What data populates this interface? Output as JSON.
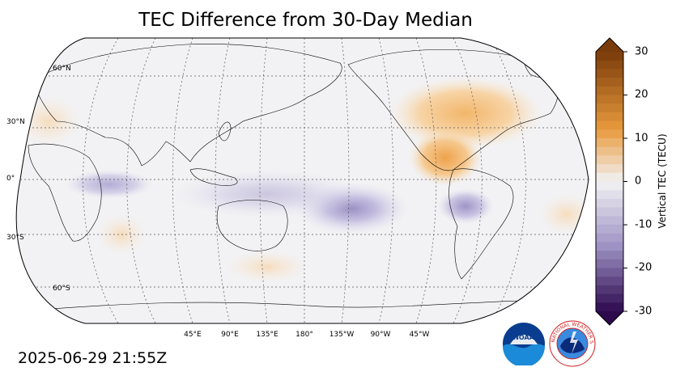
{
  "title": "TEC Difference from 30-Day Median",
  "timestamp": "2025-06-29 21:55Z",
  "latitude_labels": [
    "60°N",
    "30°N",
    "0°",
    "30°S",
    "60°S"
  ],
  "longitude_labels": [
    "45°E",
    "90°E",
    "135°E",
    "180°",
    "135°W",
    "90°W",
    "45°W"
  ],
  "colorbar": {
    "label": "Vertical TEC (TECU)",
    "ticks": [
      "30",
      "20",
      "10",
      "0",
      "-10",
      "-20",
      "-30"
    ],
    "min": -30,
    "max": 30,
    "colors": {
      "positive_max": "#7a3b0a",
      "positive_mid": "#e89a3c",
      "neutral": "#f2f2f4",
      "negative_mid": "#9e92c4",
      "negative_max": "#2d0a4e"
    }
  },
  "logos": {
    "noaa_text": "NOAA",
    "nws_text": "NATIONAL WEATHER SERVICE"
  },
  "map": {
    "projection": "Robinson",
    "central_longitude": "180°",
    "anomalies": [
      {
        "region": "North America",
        "sign": "positive"
      },
      {
        "region": "Mexico / Central America",
        "sign": "positive"
      },
      {
        "region": "South Pacific",
        "sign": "negative"
      },
      {
        "region": "Equatorial Indian Ocean",
        "sign": "negative"
      },
      {
        "region": "South America",
        "sign": "negative"
      }
    ]
  }
}
